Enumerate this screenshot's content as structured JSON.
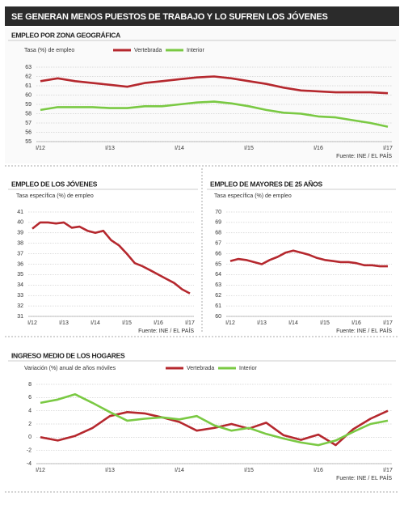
{
  "title": "SE GENERAN MENOS PUESTOS DE TRABAJO Y LO SUFREN LOS JÓVENES",
  "chart_data": [
    {
      "type": "line",
      "title": "EMPLEO POR ZONA GEOGRÁFICA",
      "ylabel": "Tasa (%) de empleo",
      "source": "Fuente: INE / EL PAÍS",
      "categories": [
        "I/12",
        null,
        null,
        null,
        "I/13",
        null,
        null,
        null,
        "I/14",
        null,
        null,
        null,
        "I/15",
        null,
        null,
        null,
        "I/16",
        null,
        null,
        null,
        "I/17"
      ],
      "series": [
        {
          "name": "Vertebrada",
          "color": "#b5282e",
          "values": [
            61.5,
            61.8,
            61.5,
            61.3,
            61.1,
            60.9,
            61.3,
            61.5,
            61.7,
            61.9,
            62.0,
            61.8,
            61.5,
            61.2,
            60.8,
            60.5,
            60.4,
            60.3,
            60.3,
            60.3,
            60.2
          ]
        },
        {
          "name": "Interior",
          "color": "#7ac943",
          "values": [
            58.4,
            58.7,
            58.7,
            58.7,
            58.6,
            58.6,
            58.8,
            58.8,
            59.0,
            59.2,
            59.3,
            59.1,
            58.8,
            58.4,
            58.1,
            58.0,
            57.7,
            57.6,
            57.3,
            57.0,
            56.6
          ]
        }
      ],
      "ylim": [
        55,
        63
      ],
      "yticks": [
        63,
        62,
        61,
        60,
        59,
        58,
        57,
        56,
        55
      ],
      "grid": true
    },
    {
      "type": "line",
      "title": "EMPLEO DE LOS JÓVENES",
      "ylabel": "Tasa específica (%) de empleo",
      "source": "Fuente: INE / EL PAÍS",
      "categories": [
        "I/12",
        null,
        null,
        null,
        "I/13",
        null,
        null,
        null,
        "I/14",
        null,
        null,
        null,
        "I/15",
        null,
        null,
        null,
        "I/16",
        null,
        null,
        null,
        "I/17"
      ],
      "series": [
        {
          "color": "#b5282e",
          "values": [
            39.4,
            40.0,
            40.0,
            39.9,
            40.0,
            39.5,
            39.6,
            39.2,
            39.0,
            39.2,
            38.3,
            37.8,
            37.0,
            36.1,
            35.8,
            35.4,
            35.0,
            34.6,
            34.2,
            33.6,
            33.2
          ]
        }
      ],
      "ylim": [
        31,
        41
      ],
      "yticks": [
        41,
        40,
        39,
        38,
        37,
        36,
        35,
        34,
        33,
        32,
        31
      ],
      "grid": true
    },
    {
      "type": "line",
      "title": "EMPLEO DE MAYORES DE 25 AÑOS",
      "ylabel": "Tasa específica (%) de empleo",
      "source": "Fuente: INE / EL PAÍS",
      "categories": [
        "I/12",
        null,
        null,
        null,
        "I/13",
        null,
        null,
        null,
        "I/14",
        null,
        null,
        null,
        "I/15",
        null,
        null,
        null,
        "I/16",
        null,
        null,
        null,
        "I/17"
      ],
      "series": [
        {
          "color": "#b5282e",
          "values": [
            65.3,
            65.5,
            65.4,
            65.2,
            65.0,
            65.4,
            65.7,
            66.1,
            66.3,
            66.1,
            65.9,
            65.6,
            65.4,
            65.3,
            65.2,
            65.2,
            65.1,
            64.9,
            64.9,
            64.8,
            64.8
          ]
        }
      ],
      "ylim": [
        60,
        70
      ],
      "yticks": [
        70,
        69,
        68,
        67,
        66,
        65,
        64,
        63,
        62,
        61,
        60
      ],
      "grid": true
    },
    {
      "type": "line",
      "title": "INGRESO MEDIO DE LOS HOGARES",
      "ylabel": "Variación (%) anual de años móviles",
      "source": "Fuente: INE / EL PAÍS",
      "categories": [
        "I/12",
        null,
        null,
        null,
        "I/13",
        null,
        null,
        null,
        "I/14",
        null,
        null,
        null,
        "I/15",
        null,
        null,
        null,
        "I/16",
        null,
        null,
        null,
        "I/17"
      ],
      "series": [
        {
          "name": "Vertebrada",
          "color": "#b5282e",
          "values": [
            0,
            -0.5,
            0.2,
            1.4,
            3.2,
            3.8,
            3.6,
            3.0,
            2.3,
            1.0,
            1.4,
            2.0,
            1.3,
            2.2,
            0.3,
            -0.4,
            0.4,
            -1.2,
            1.2,
            2.8,
            4.0
          ]
        },
        {
          "name": "Interior",
          "color": "#7ac943",
          "values": [
            5.2,
            5.7,
            6.5,
            5.2,
            3.8,
            2.5,
            2.8,
            3.0,
            2.7,
            3.2,
            1.8,
            1.0,
            1.4,
            0.5,
            -0.2,
            -0.8,
            -1.2,
            -0.5,
            0.8,
            2.0,
            2.5
          ]
        }
      ],
      "ylim": [
        -4,
        8
      ],
      "yticks": [
        8,
        6,
        4,
        2,
        0,
        -2,
        -4
      ],
      "grid": true
    }
  ]
}
